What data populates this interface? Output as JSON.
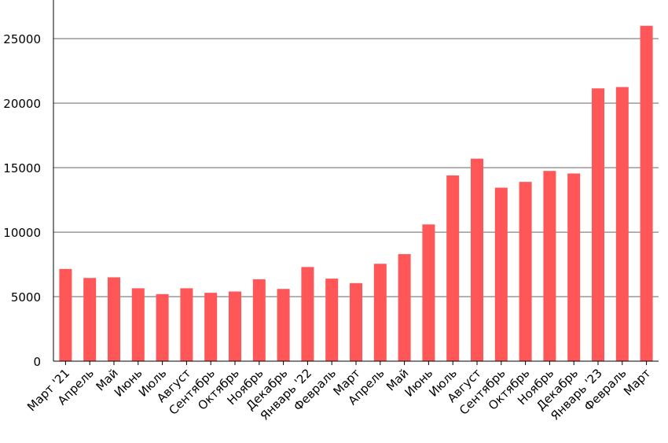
{
  "chart_data": {
    "type": "bar",
    "categories": [
      "Март '21",
      "Апрель",
      "Май",
      "Июнь",
      "Июль",
      "Август",
      "Сентябрь",
      "Октябрь",
      "Ноябрь",
      "Декабрь",
      "Январь '22",
      "Февраль",
      "Март",
      "Апрель",
      "Май",
      "Июнь",
      "Июль",
      "Август",
      "Сентябрь",
      "Октябрь",
      "Ноябрь",
      "Декабрь",
      "Январь '23",
      "Февраль",
      "Март"
    ],
    "values": [
      7150,
      6450,
      6500,
      5650,
      5200,
      5650,
      5300,
      5400,
      6350,
      5600,
      7300,
      6400,
      6050,
      7550,
      8300,
      10600,
      14400,
      15700,
      13450,
      13900,
      14750,
      14550,
      21150,
      21250,
      26000
    ],
    "yticks": [
      "0",
      "5000",
      "10000",
      "15000",
      "20000",
      "25000"
    ],
    "ylim": [
      0,
      28000
    ],
    "grid": true,
    "colors": {
      "bar": "#ff5757",
      "grid": "#999999",
      "axis": "#000000"
    }
  }
}
